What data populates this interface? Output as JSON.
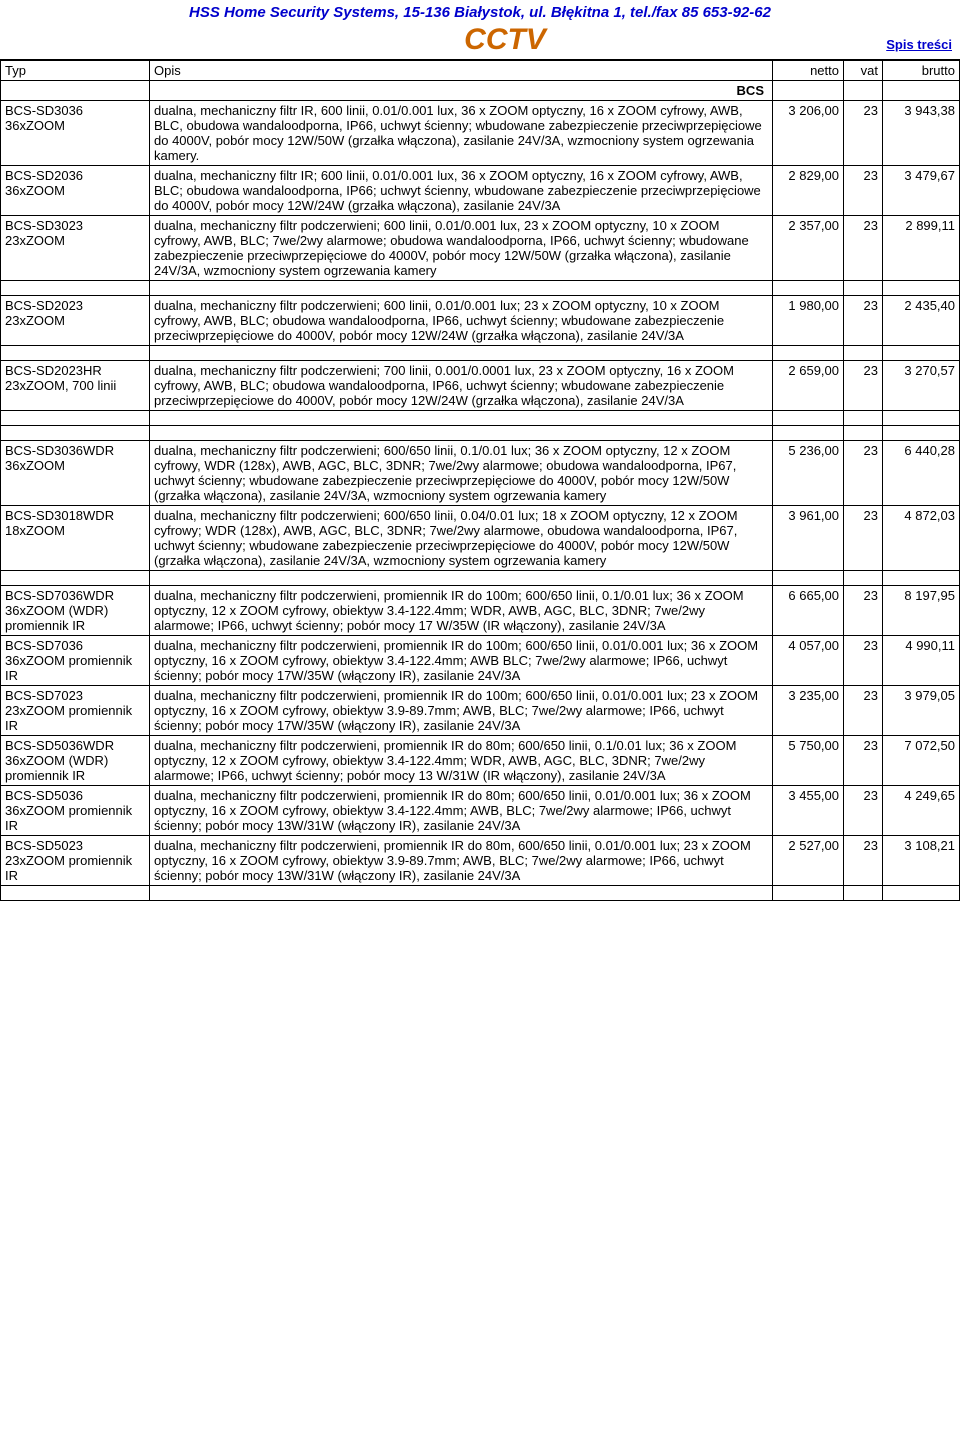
{
  "header": {
    "company": "HSS Home Security Systems, 15-136 Białystok, ul. Błękitna 1, tel./fax 85 653-92-62",
    "title": "CCTV",
    "toc": "Spis treści"
  },
  "columns": {
    "typ": "Typ",
    "opis": "Opis",
    "netto": "netto",
    "vat": "vat",
    "brutto": "brutto"
  },
  "section": "BCS",
  "rows": [
    {
      "typ": "BCS-SD3036 36xZOOM",
      "opis": "dualna, mechaniczny filtr IR, 600 linii, 0.01/0.001 lux, 36 x ZOOM optyczny, 16 x ZOOM cyfrowy, AWB, BLC, obudowa wandaloodporna, IP66, uchwyt ścienny; wbudowane zabezpieczenie przeciwprzepięciowe do 4000V, pobór mocy 12W/50W (grzałka włączona), zasilanie 24V/3A, wzmocniony system ogrzewania kamery.",
      "netto": "3 206,00",
      "vat": "23",
      "brutto": "3 943,38"
    },
    {
      "typ": "BCS-SD2036 36xZOOM",
      "opis": "dualna, mechaniczny filtr IR; 600 linii, 0.01/0.001 lux, 36 x ZOOM optyczny, 16 x ZOOM cyfrowy, AWB, BLC; obudowa wandaloodporna, IP66; uchwyt ścienny, wbudowane zabezpieczenie przeciwprzepięciowe do 4000V, pobór mocy 12W/24W (grzałka włączona), zasilanie 24V/3A",
      "netto": "2 829,00",
      "vat": "23",
      "brutto": "3 479,67"
    },
    {
      "typ": "BCS-SD3023 23xZOOM",
      "opis": "dualna, mechaniczny filtr podczerwieni; 600 linii, 0.01/0.001 lux, 23 x ZOOM optyczny, 10 x ZOOM cyfrowy, AWB, BLC; 7we/2wy alarmowe; obudowa wandaloodporna, IP66, uchwyt ścienny; wbudowane zabezpieczenie przeciwprzepięciowe do 4000V, pobór mocy 12W/50W (grzałka włączona), zasilanie 24V/3A, wzmocniony system ogrzewania kamery",
      "netto": "2 357,00",
      "vat": "23",
      "brutto": "2 899,11"
    },
    {
      "spacer": true
    },
    {
      "typ": "BCS-SD2023 23xZOOM",
      "opis": "dualna, mechaniczny filtr podczerwieni; 600 linii, 0.01/0.001 lux; 23 x ZOOM optyczny, 10 x ZOOM cyfrowy, AWB, BLC; obudowa wandaloodporna, IP66, uchwyt ścienny; wbudowane zabezpieczenie przeciwprzepięciowe do 4000V, pobór mocy 12W/24W (grzałka włączona), zasilanie 24V/3A",
      "netto": "1 980,00",
      "vat": "23",
      "brutto": "2 435,40"
    },
    {
      "spacer": true
    },
    {
      "typ": "BCS-SD2023HR 23xZOOM, 700 linii",
      "opis": "dualna, mechaniczny filtr podczerwieni; 700 linii, 0.001/0.0001 lux, 23 x ZOOM optyczny, 16 x ZOOM cyfrowy, AWB, BLC; obudowa wandaloodporna, IP66, uchwyt ścienny; wbudowane zabezpieczenie przeciwprzepięciowe do 4000V, pobór mocy 12W/24W (grzałka włączona), zasilanie 24V/3A",
      "netto": "2 659,00",
      "vat": "23",
      "brutto": "3 270,57"
    },
    {
      "spacer": true
    },
    {
      "spacer": true
    },
    {
      "typ": "BCS-SD3036WDR 36xZOOM",
      "opis": "dualna, mechaniczny filtr podczerwieni; 600/650 linii, 0.1/0.01 lux; 36 x ZOOM optyczny, 12 x ZOOM cyfrowy, WDR (128x), AWB, AGC, BLC, 3DNR; 7we/2wy alarmowe; obudowa wandaloodporna, IP67, uchwyt ścienny; wbudowane zabezpieczenie przeciwprzepięciowe do 4000V, pobór mocy 12W/50W (grzałka włączona), zasilanie 24V/3A, wzmocniony system ogrzewania kamery",
      "netto": "5 236,00",
      "vat": "23",
      "brutto": "6 440,28"
    },
    {
      "typ": "BCS-SD3018WDR 18xZOOM",
      "opis": "dualna, mechaniczny filtr podczerwieni; 600/650 linii, 0.04/0.01 lux; 18 x ZOOM optyczny, 12 x ZOOM cyfrowy; WDR (128x), AWB, AGC, BLC, 3DNR; 7we/2wy alarmowe, obudowa wandaloodporna, IP67, uchwyt ścienny; wbudowane zabezpieczenie przeciwprzepięciowe do 4000V, pobór mocy 12W/50W (grzałka włączona), zasilanie 24V/3A, wzmocniony system ogrzewania kamery",
      "netto": "3 961,00",
      "vat": "23",
      "brutto": "4 872,03"
    },
    {
      "spacer": true
    },
    {
      "typ": "BCS-SD7036WDR 36xZOOM (WDR) promiennik IR",
      "opis": "dualna, mechaniczny filtr podczerwieni, promiennik IR do 100m; 600/650 linii, 0.1/0.01 lux; 36 x ZOOM optyczny, 12 x ZOOM cyfrowy, obiektyw 3.4-122.4mm; WDR, AWB, AGC, BLC, 3DNR; 7we/2wy alarmowe; IP66, uchwyt ścienny; pobór mocy 17 W/35W (IR włączony), zasilanie 24V/3A",
      "netto": "6 665,00",
      "vat": "23",
      "brutto": "8 197,95"
    },
    {
      "typ": "BCS-SD7036 36xZOOM promiennik IR",
      "opis": "dualna, mechaniczny filtr podczerwieni, promiennik IR do 100m; 600/650 linii, 0.01/0.001 lux; 36 x ZOOM optyczny, 16 x ZOOM cyfrowy, obiektyw 3.4-122.4mm; AWB BLC; 7we/2wy alarmowe; IP66, uchwyt ścienny; pobór mocy 17W/35W (włączony IR), zasilanie 24V/3A",
      "netto": "4 057,00",
      "vat": "23",
      "brutto": "4 990,11"
    },
    {
      "typ": "BCS-SD7023 23xZOOM promiennik IR",
      "opis": "dualna, mechaniczny filtr podczerwieni, promiennik IR do 100m; 600/650 linii, 0.01/0.001 lux; 23 x ZOOM optyczny, 16 x ZOOM cyfrowy, obiektyw 3.9-89.7mm; AWB, BLC; 7we/2wy alarmowe; IP66, uchwyt ścienny; pobór mocy 17W/35W (włączony IR), zasilanie 24V/3A",
      "netto": "3 235,00",
      "vat": "23",
      "brutto": "3 979,05"
    },
    {
      "typ": "BCS-SD5036WDR 36xZOOM (WDR) promiennik IR",
      "opis": "dualna, mechaniczny filtr podczerwieni, promiennik IR do 80m; 600/650 linii, 0.1/0.01 lux; 36 x ZOOM optyczny, 12 x ZOOM cyfrowy, obiektyw 3.4-122.4mm; WDR, AWB, AGC, BLC, 3DNR; 7we/2wy alarmowe; IP66, uchwyt ścienny; pobór mocy 13 W/31W (IR włączony), zasilanie 24V/3A",
      "netto": "5 750,00",
      "vat": "23",
      "brutto": "7 072,50"
    },
    {
      "typ": "BCS-SD5036 36xZOOM promiennik IR",
      "opis": "dualna, mechaniczny filtr podczerwieni, promiennik IR do 80m; 600/650 linii, 0.01/0.001 lux; 36 x ZOOM optyczny, 16 x ZOOM cyfrowy, obiektyw 3.4-122.4mm; AWB, BLC; 7we/2wy alarmowe; IP66, uchwyt ścienny; pobór mocy 13W/31W (włączony IR), zasilanie 24V/3A",
      "netto": "3 455,00",
      "vat": "23",
      "brutto": "4 249,65"
    },
    {
      "typ": "BCS-SD5023 23xZOOM promiennik IR",
      "opis": "dualna, mechaniczny filtr podczerwieni, promiennik IR do 80m, 600/650 linii, 0.01/0.001 lux; 23 x ZOOM optyczny, 16 x ZOOM cyfrowy, obiektyw 3.9-89.7mm; AWB, BLC; 7we/2wy alarmowe; IP66, uchwyt ścienny; pobór mocy 13W/31W (włączony IR), zasilanie 24V/3A",
      "netto": "2 527,00",
      "vat": "23",
      "brutto": "3 108,21"
    },
    {
      "spacer": true
    }
  ],
  "colors": {
    "header_text": "#0000cc",
    "title_text": "#cc6600",
    "border": "#000000",
    "background": "#ffffff"
  }
}
